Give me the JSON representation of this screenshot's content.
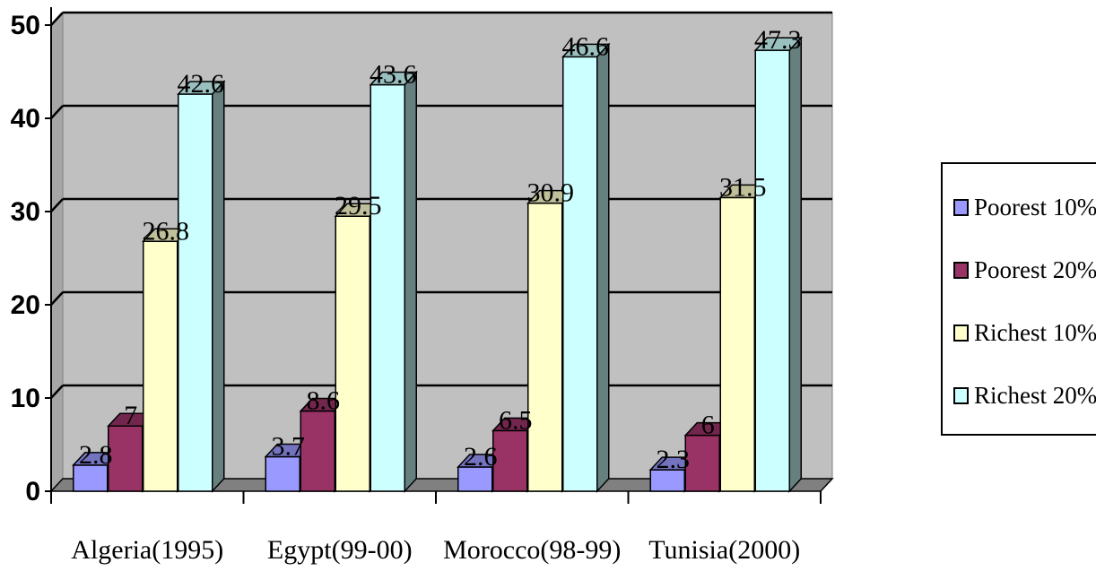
{
  "chart_data": {
    "type": "bar",
    "title": "",
    "xlabel": "",
    "ylabel": "",
    "ylim": [
      0,
      50
    ],
    "yticks": [
      "0",
      "10",
      "20",
      "30",
      "40",
      "50"
    ],
    "grid": true,
    "legend_position": "right",
    "categories": [
      "Algeria(1995)",
      "Egypt(99-00)",
      "Morocco(98-99)",
      "Tunisia(2000)"
    ],
    "series": [
      {
        "name": "Poorest 10%",
        "values": [
          2.8,
          3.7,
          2.6,
          2.3
        ],
        "labels": [
          "2.8",
          "3.7",
          "2.6",
          "2.3"
        ],
        "color": "#9999ff"
      },
      {
        "name": "Poorest 20%",
        "values": [
          7,
          8.6,
          6.5,
          6
        ],
        "labels": [
          "7",
          "8.6",
          "6.5",
          "6"
        ],
        "color": "#993366"
      },
      {
        "name": "Richest 10%",
        "values": [
          26.8,
          29.5,
          30.9,
          31.5
        ],
        "labels": [
          "26.8",
          "29.5",
          "30.9",
          "31.5"
        ],
        "color": "#ffffcc"
      },
      {
        "name": "Richest 20%",
        "values": [
          42.6,
          43.6,
          46.6,
          47.3
        ],
        "labels": [
          "42.6",
          "43.6",
          "46.6",
          "47.3"
        ],
        "color": "#ccffff"
      }
    ]
  }
}
